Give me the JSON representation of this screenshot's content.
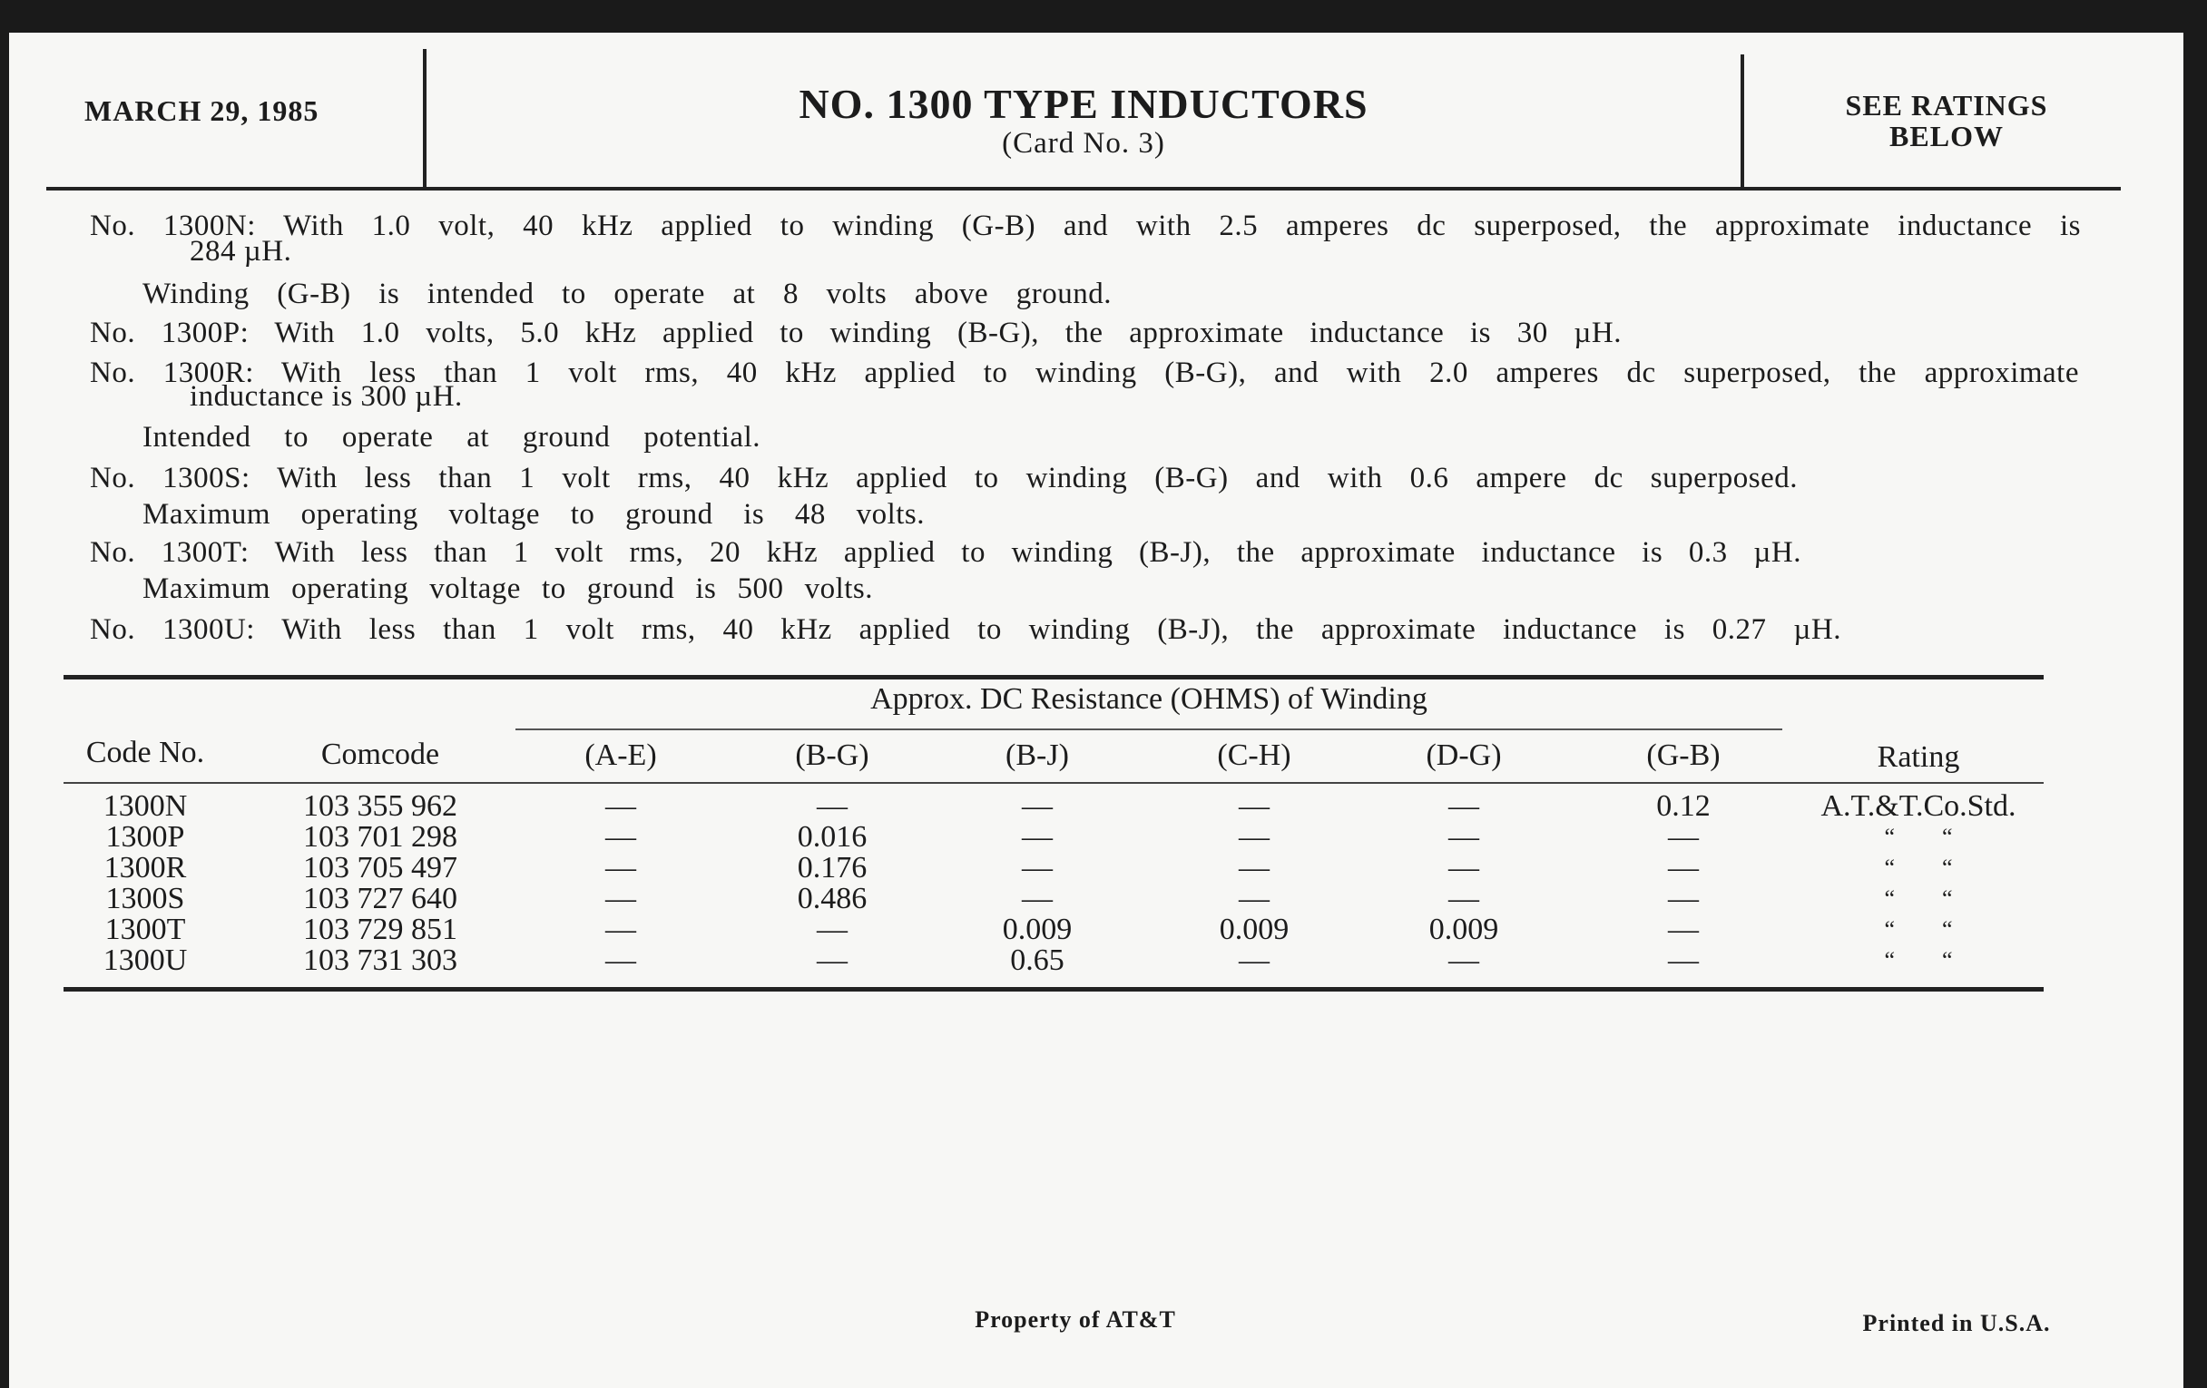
{
  "header": {
    "date": "MARCH 29, 1985",
    "title": "NO. 1300 TYPE INDUCTORS",
    "subtitle": "(Card No. 3)",
    "ratings_note": [
      "SEE RATINGS",
      "BELOW"
    ]
  },
  "notes": [
    "No. 1300N: With 1.0 volt, 40 kHz applied to winding (G-B) and with 2.5 amperes dc superposed, the approximate inductance is",
    "284 µH.",
    "Winding (G-B) is intended to operate at 8 volts above ground.",
    "No. 1300P: With 1.0 volts, 5.0 kHz applied to winding (B-G), the approximate inductance is 30 µH.",
    "No. 1300R: With less than 1 volt rms, 40 kHz applied to winding (B-G), and with 2.0 amperes dc superposed, the approximate",
    "inductance is 300 µH.",
    "Intended to operate at ground potential.",
    "No. 1300S: With less than 1 volt rms, 40 kHz applied to winding (B-G) and with 0.6 ampere  dc superposed.",
    "Maximum operating voltage to ground is 48 volts.",
    "No. 1300T: With less than 1 volt rms, 20 kHz applied to winding (B-J), the approximate inductance is 0.3 µH.",
    "Maximum operating voltage to ground is 500 volts.",
    "No. 1300U: With less than 1 volt rms, 40 kHz applied to winding (B-J), the approximate inductance is 0.27 µH."
  ],
  "table": {
    "group_header": "Approx. DC Resistance (OHMS) of Winding",
    "columns": [
      "Code No.",
      "Comcode",
      "(A-E)",
      "(B-G)",
      "(B-J)",
      "(C-H)",
      "(D-G)",
      "(G-B)",
      "Rating"
    ],
    "rows": [
      [
        "1300N",
        "103 355 962",
        "—",
        "—",
        "—",
        "—",
        "—",
        "0.12",
        "A.T.&T.Co.Std."
      ],
      [
        "1300P",
        "103 701 298",
        "—",
        "0.016",
        "—",
        "—",
        "—",
        "—",
        "“        “"
      ],
      [
        "1300R",
        "103 705 497",
        "—",
        "0.176",
        "—",
        "—",
        "—",
        "—",
        "“        “"
      ],
      [
        "1300S",
        "103 727 640",
        "—",
        "0.486",
        "—",
        "—",
        "—",
        "—",
        "“        “"
      ],
      [
        "1300T",
        "103 729 851",
        "—",
        "—",
        "0.009",
        "0.009",
        "0.009",
        "—",
        "“        “"
      ],
      [
        "1300U",
        "103 731 303",
        "—",
        "—",
        "0.65",
        "—",
        "—",
        "—",
        "“        “"
      ]
    ]
  },
  "footer": {
    "property": "Property of AT&T",
    "printed": "Printed in U.S.A."
  }
}
